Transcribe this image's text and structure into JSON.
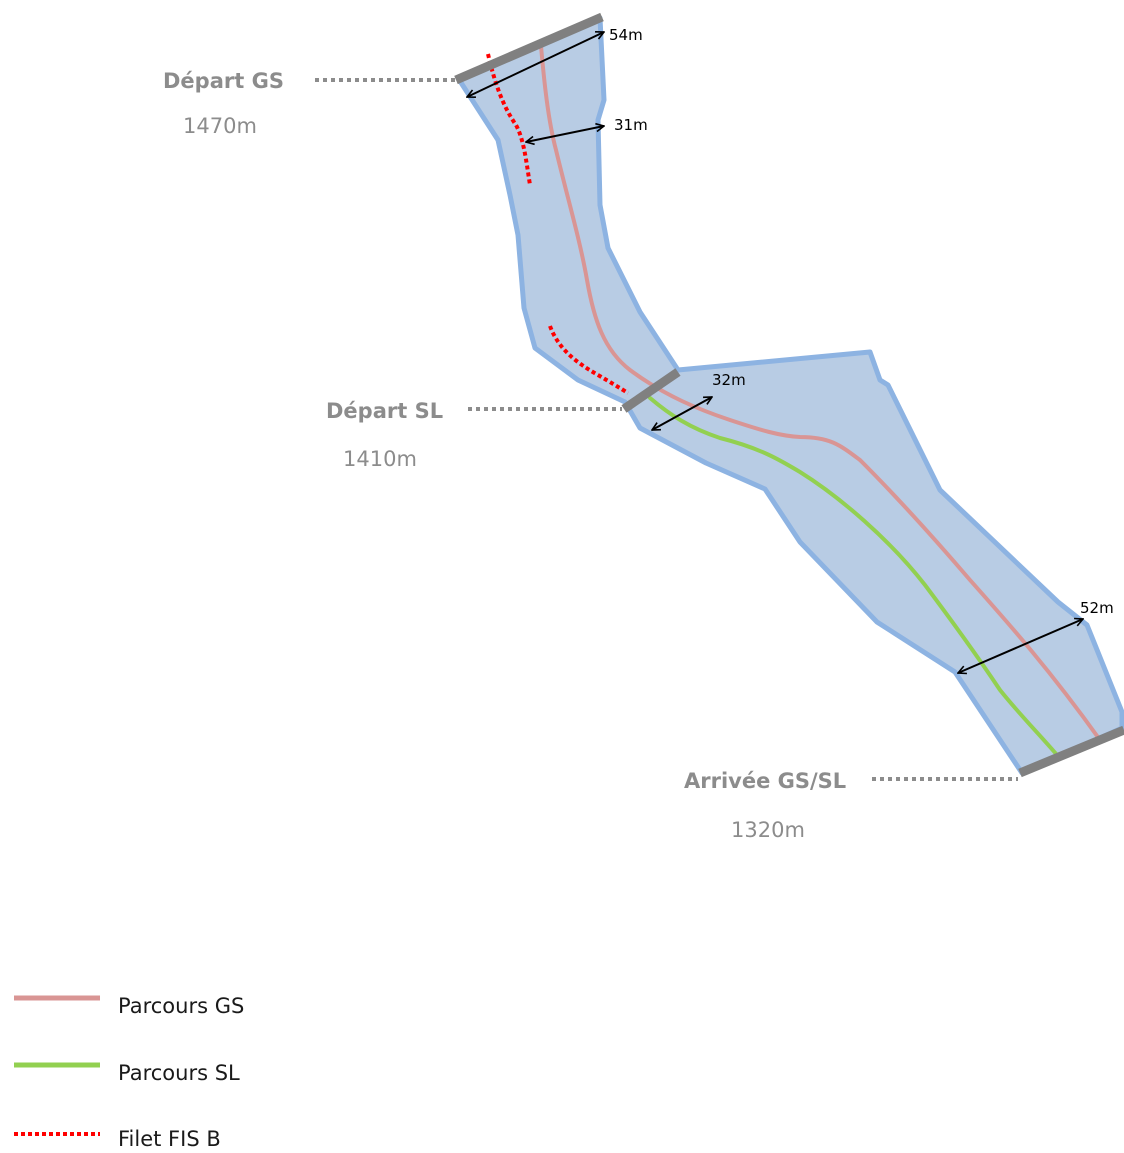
{
  "colors": {
    "slope_fill": "#b8cce4",
    "slope_border": "#8db3e2",
    "gs_course": "#d99594",
    "sl_course": "#92d050",
    "fis_net": "#ff0000",
    "gate": "#808080",
    "leader": "#8c8c8c",
    "label": "#8c8c8c"
  },
  "stations": {
    "start_gs": {
      "label": "Départ GS",
      "altitude": "1470m"
    },
    "start_sl": {
      "label": "Départ SL",
      "altitude": "1410m"
    },
    "finish": {
      "label": "Arrivée GS/SL",
      "altitude": "1320m"
    }
  },
  "widths": {
    "w1": "54m",
    "w2": "31m",
    "w3": "32m",
    "w4": "52m"
  },
  "legend": {
    "gs": {
      "label": "Parcours GS",
      "icon": "solid-line-red"
    },
    "sl": {
      "label": "Parcours SL",
      "icon": "solid-line-green"
    },
    "net": {
      "label": "Filet FIS B",
      "icon": "dotted-line-red"
    }
  }
}
